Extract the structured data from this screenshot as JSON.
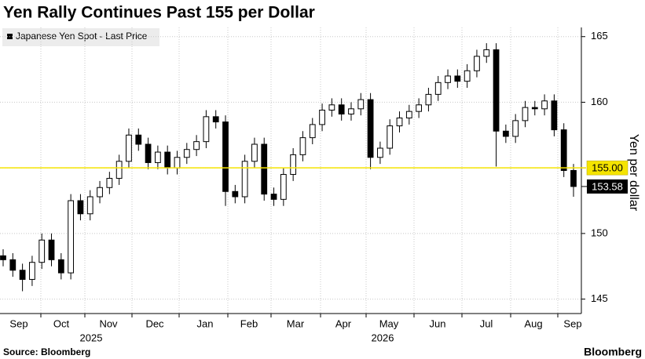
{
  "chart_data": {
    "type": "candlestick",
    "title": "Yen Rally Continues Past 155 per Dollar",
    "legend": "Japanese Yen Spot - Last Price",
    "y_label": "Yen per dollar",
    "source": "Source: Bloomberg",
    "brand": "Bloomberg",
    "categories": [
      "Sep",
      "Oct",
      "Nov",
      "Dec",
      "Jan",
      "Feb",
      "Mar",
      "Apr",
      "May",
      "Jun",
      "Jul",
      "Aug",
      "Sep"
    ],
    "years": [
      "2025",
      "2026"
    ],
    "color": "#000000",
    "open": [
      148.3,
      148.0,
      147.2,
      146.5,
      147.8,
      149.5,
      148.0,
      147.0,
      152.5,
      151.5,
      152.8,
      153.5,
      154.2,
      155.5,
      157.5,
      156.8,
      155.4,
      156.2,
      155.0,
      155.8,
      156.4,
      157.0,
      158.9,
      158.5,
      153.2,
      152.8,
      155.5,
      156.8,
      153.0,
      152.6,
      154.5,
      156.0,
      157.3,
      158.3,
      159.4,
      159.8,
      159.1,
      159.5,
      160.2,
      155.8,
      156.5,
      158.2,
      158.8,
      159.3,
      159.8,
      160.6,
      161.5,
      162.0,
      161.6,
      162.4,
      163.5,
      164.0,
      157.8,
      157.4,
      158.6,
      159.6,
      159.5,
      160.1,
      157.9,
      154.8
    ],
    "high": [
      148.8,
      148.5,
      147.7,
      148.3,
      150.0,
      150.0,
      148.5,
      153.0,
      153.0,
      153.3,
      154.0,
      154.7,
      156.0,
      158.0,
      158.0,
      157.3,
      156.7,
      156.7,
      156.3,
      156.9,
      157.5,
      159.4,
      159.4,
      159.0,
      153.7,
      156.0,
      157.3,
      157.3,
      153.5,
      155.0,
      156.5,
      157.8,
      158.8,
      159.9,
      160.3,
      160.3,
      160.0,
      160.7,
      160.7,
      157.0,
      158.7,
      159.3,
      159.8,
      160.3,
      161.1,
      162.0,
      162.5,
      162.5,
      162.9,
      164.0,
      164.5,
      164.5,
      158.3,
      159.1,
      160.1,
      160.1,
      160.6,
      160.6,
      158.4,
      155.3
    ],
    "low": [
      147.5,
      146.7,
      145.6,
      146.0,
      147.3,
      147.5,
      146.5,
      146.5,
      151.0,
      151.0,
      152.3,
      153.0,
      153.7,
      155.0,
      156.3,
      154.9,
      154.9,
      154.5,
      154.5,
      155.3,
      155.9,
      156.5,
      158.0,
      152.1,
      152.3,
      152.3,
      155.0,
      152.5,
      152.1,
      152.1,
      154.0,
      155.5,
      156.8,
      157.8,
      158.9,
      158.6,
      158.6,
      159.0,
      154.9,
      155.3,
      156.0,
      157.7,
      158.3,
      158.8,
      159.3,
      160.1,
      161.0,
      161.1,
      161.1,
      161.9,
      163.0,
      155.1,
      156.9,
      156.9,
      158.1,
      159.0,
      159.0,
      157.4,
      154.3,
      152.8
    ],
    "close": [
      148.0,
      147.2,
      146.5,
      147.8,
      149.5,
      148.0,
      147.0,
      152.5,
      151.5,
      152.8,
      153.5,
      154.2,
      155.5,
      157.5,
      156.8,
      155.4,
      156.2,
      155.0,
      155.8,
      156.4,
      157.0,
      158.9,
      158.5,
      153.2,
      152.8,
      155.5,
      156.8,
      153.0,
      152.6,
      154.5,
      156.0,
      157.3,
      158.3,
      159.4,
      159.8,
      159.1,
      159.5,
      160.2,
      155.8,
      156.5,
      158.2,
      158.8,
      159.3,
      159.8,
      160.6,
      161.5,
      162.0,
      161.6,
      162.4,
      163.5,
      164.0,
      157.8,
      157.4,
      158.6,
      159.6,
      159.5,
      160.1,
      157.9,
      154.8,
      153.58
    ],
    "ylim": [
      143.9,
      165.7
    ],
    "yticks": [
      145,
      150,
      155,
      160,
      165
    ],
    "grid": true,
    "reference_line": {
      "value": 155,
      "label": "155.00",
      "color": "#f5e400"
    },
    "last_price": {
      "value": 153.58,
      "label": "153.58"
    }
  }
}
